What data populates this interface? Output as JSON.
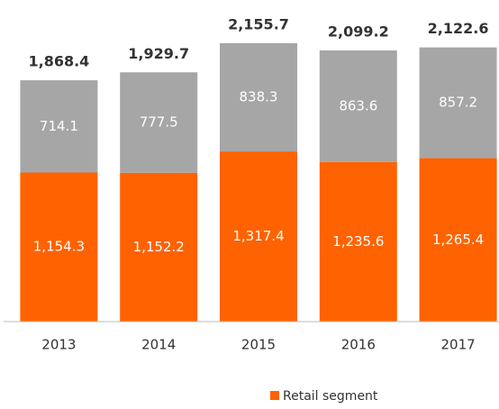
{
  "chart_data": {
    "type": "stacked-bar",
    "categories": [
      "2013",
      "2014",
      "2015",
      "2016",
      "2017"
    ],
    "series": [
      {
        "name": "Retail segment",
        "color": "#ff6200",
        "values": [
          1154.3,
          1152.2,
          1317.4,
          1235.6,
          1265.4
        ],
        "value_labels": [
          "1,154.3",
          "1,152.2",
          "1,317.4",
          "1,235.6",
          "1,265.4"
        ]
      },
      {
        "color": "#a6a6a6",
        "values": [
          714.1,
          777.5,
          838.3,
          863.6,
          857.2
        ]
      }
    ],
    "totals": [
      1868.4,
      1929.7,
      2155.7,
      2099.2,
      2122.6
    ],
    "total_labels": [
      "1,868.4",
      "1,929.7",
      "2,155.7",
      "2,099.2",
      "2,122.6"
    ]
  }
}
